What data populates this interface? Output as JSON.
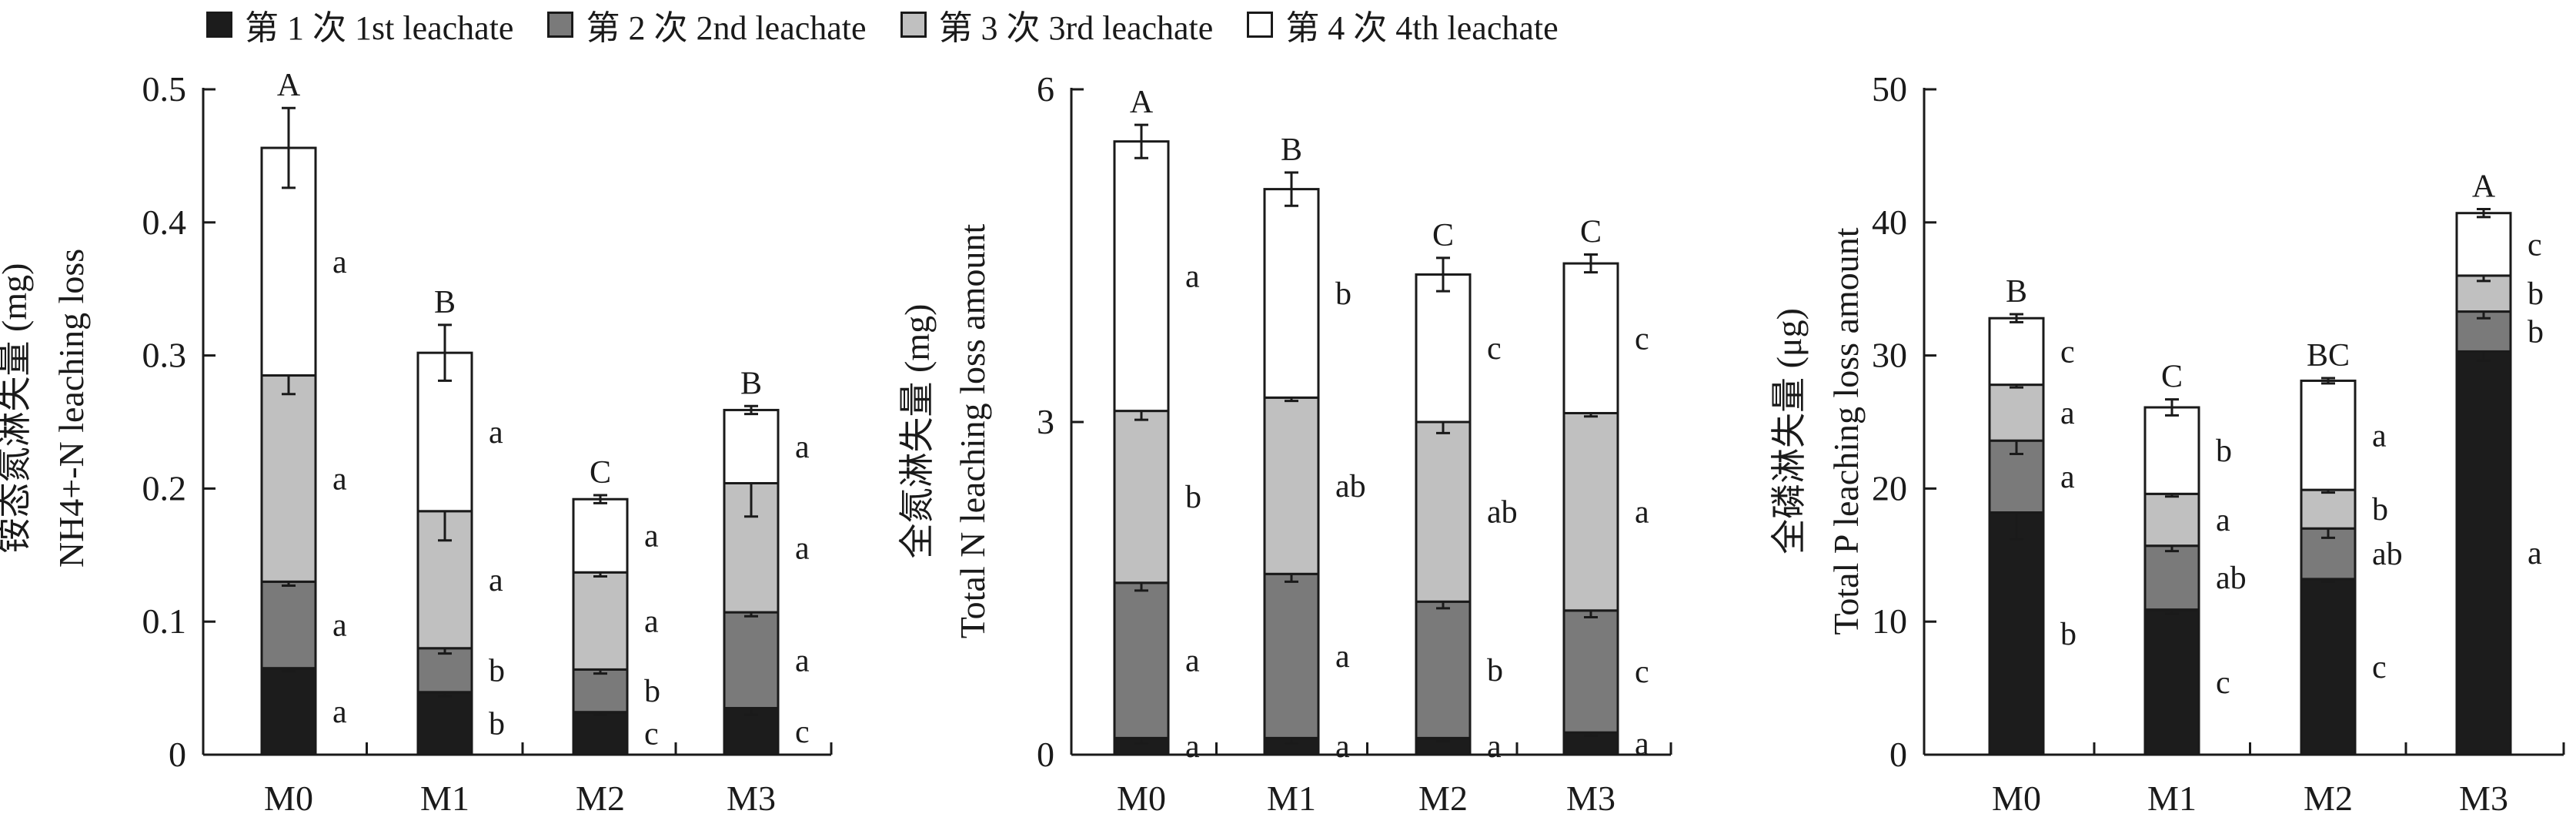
{
  "legend": [
    {
      "label": "第 1 次 1st leachate",
      "color": "#1c1c1c"
    },
    {
      "label": "第 2 次 2nd leachate",
      "color": "#7a7a7a"
    },
    {
      "label": "第 3 次 3rd leachate",
      "color": "#c0c0c0"
    },
    {
      "label": "第 4 次 4th leachate",
      "color": "#ffffff"
    }
  ],
  "chart_data": [
    {
      "type": "bar",
      "stacked": true,
      "categories": [
        "M0",
        "M1",
        "M2",
        "M3"
      ],
      "ylabel_lines": [
        "铵态氮淋失量 (mg)",
        "NH4+-N leaching loss"
      ],
      "ylim": [
        0,
        0.5
      ],
      "yticks": [
        0,
        0.1,
        0.2,
        0.3,
        0.4,
        0.5
      ],
      "ytick_labels": [
        "0",
        "0.1",
        "0.2",
        "0.3",
        "0.4",
        "0.5"
      ],
      "series": [
        {
          "values": [
            0.065,
            0.047,
            0.032,
            0.035
          ],
          "errors": [
            0.002,
            0.003,
            0.002,
            0.005
          ],
          "letters": [
            "a",
            "b",
            "c",
            "c"
          ]
        },
        {
          "values": [
            0.065,
            0.033,
            0.032,
            0.072
          ],
          "errors": [
            0.003,
            0.004,
            0.003,
            0.003
          ],
          "letters": [
            "a",
            "b",
            "b",
            "a"
          ]
        },
        {
          "values": [
            0.155,
            0.103,
            0.073,
            0.097
          ],
          "errors": [
            0.014,
            0.022,
            0.003,
            0.025
          ],
          "letters": [
            "a",
            "a",
            "a",
            "a"
          ]
        },
        {
          "values": [
            0.171,
            0.119,
            0.055,
            0.055
          ],
          "errors": [
            0.03,
            0.021,
            0.003,
            0.003
          ],
          "letters": [
            "a",
            "a",
            "a",
            "a"
          ]
        }
      ],
      "group_letters": [
        "A",
        "B",
        "C",
        "B"
      ]
    },
    {
      "type": "bar",
      "stacked": true,
      "categories": [
        "M0",
        "M1",
        "M2",
        "M3"
      ],
      "ylabel_lines": [
        "全氮淋失量 (mg)",
        "Total N leaching loss amount"
      ],
      "ylim": [
        0,
        6
      ],
      "yticks": [
        0,
        3,
        6
      ],
      "ytick_labels": [
        "0",
        "3",
        "6"
      ],
      "series": [
        {
          "values": [
            0.15,
            0.15,
            0.15,
            0.2
          ],
          "errors": [
            0.05,
            0.05,
            0.03,
            0.03
          ],
          "letters": [
            "a",
            "a",
            "a",
            "a"
          ]
        },
        {
          "values": [
            1.4,
            1.48,
            1.23,
            1.1
          ],
          "errors": [
            0.07,
            0.07,
            0.06,
            0.06
          ],
          "letters": [
            "a",
            "a",
            "b",
            "c"
          ]
        },
        {
          "values": [
            1.55,
            1.59,
            1.62,
            1.78
          ],
          "errors": [
            0.08,
            0.03,
            0.1,
            0.03
          ],
          "letters": [
            "b",
            "ab",
            "ab",
            "a"
          ]
        },
        {
          "values": [
            2.43,
            1.88,
            1.33,
            1.35
          ],
          "errors": [
            0.15,
            0.15,
            0.15,
            0.08
          ],
          "letters": [
            "a",
            "b",
            "c",
            "c"
          ]
        }
      ],
      "group_letters": [
        "A",
        "B",
        "C",
        "C"
      ]
    },
    {
      "type": "bar",
      "stacked": true,
      "categories": [
        "M0",
        "M1",
        "M2",
        "M3"
      ],
      "ylabel_lines": [
        "全磷淋失量 (μg)",
        "Total P leaching loss amount"
      ],
      "ylim": [
        0,
        50
      ],
      "yticks": [
        0,
        10,
        20,
        30,
        40,
        50
      ],
      "ytick_labels": [
        "0",
        "10",
        "20",
        "30",
        "40",
        "50"
      ],
      "series": [
        {
          "values": [
            18.2,
            10.9,
            13.2,
            30.3
          ],
          "errors": [
            2.0,
            0.3,
            0.2,
            0.7
          ],
          "letters": [
            "b",
            "c",
            "c",
            "a"
          ]
        },
        {
          "values": [
            5.4,
            4.8,
            3.8,
            3.0
          ],
          "errors": [
            1.0,
            0.4,
            0.7,
            0.5
          ],
          "letters": [
            "a",
            "ab",
            "ab",
            "b"
          ]
        },
        {
          "values": [
            4.2,
            3.9,
            2.9,
            2.7
          ],
          "errors": [
            0.2,
            0.2,
            0.2,
            0.4
          ],
          "letters": [
            "a",
            "a",
            "b",
            "b"
          ]
        },
        {
          "values": [
            5.0,
            6.5,
            8.2,
            4.7
          ],
          "errors": [
            0.3,
            0.6,
            0.2,
            0.3
          ],
          "letters": [
            "c",
            "b",
            "a",
            "c"
          ]
        }
      ],
      "group_letters": [
        "B",
        "C",
        "BC",
        "A"
      ]
    }
  ]
}
